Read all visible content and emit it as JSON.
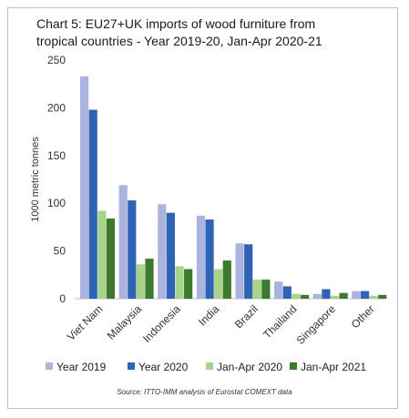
{
  "chart_data": {
    "type": "bar",
    "title_lines": [
      "Chart 5: EU27+UK imports of wood furniture from",
      "tropical countries - Year 2019-20, Jan-Apr 2020-21"
    ],
    "ylabel": "1000 metric tonnes",
    "ylim": [
      0,
      250
    ],
    "yticks": [
      0,
      50,
      100,
      150,
      200,
      250
    ],
    "grid": false,
    "legend_position": "bottom",
    "categories": [
      "Viet Nam",
      "Malaysia",
      "Indonesia",
      "India",
      "Brazil",
      "Thailand",
      "Singapore",
      "Other"
    ],
    "series": [
      {
        "name": "Year 2019",
        "color": "#aab4dc",
        "values": [
          233,
          119,
          99,
          87,
          58,
          18,
          5,
          8
        ]
      },
      {
        "name": "Year 2020",
        "color": "#2f64b5",
        "values": [
          198,
          103,
          90,
          83,
          57,
          13,
          10,
          8
        ]
      },
      {
        "name": "Jan-Apr 2020",
        "color": "#a8d38a",
        "values": [
          92,
          36,
          34,
          31,
          20,
          5,
          3,
          3
        ]
      },
      {
        "name": "Jan-Apr 2021",
        "color": "#3e7a2e",
        "values": [
          84,
          42,
          31,
          40,
          20,
          4,
          6,
          4
        ]
      }
    ],
    "source": "Source: ITTO-IMM analysis of Eurostat COMEXT data"
  }
}
